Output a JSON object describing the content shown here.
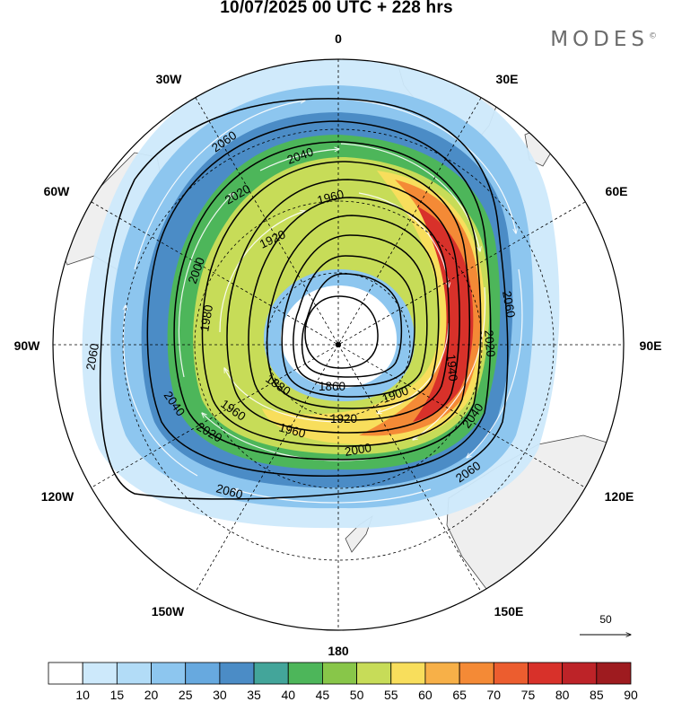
{
  "title": "10/07/2025  00 UTC  + 228 hrs",
  "brand": "MODES",
  "brand_mark": "©",
  "longitude_labels": {
    "n0": "0",
    "n30e": "30E",
    "n60e": "60E",
    "n90e": "90E",
    "n120e": "120E",
    "n150e": "150E",
    "n180": "180",
    "n150w": "150W",
    "n120w": "120W",
    "n90w": "90W",
    "n60w": "60W",
    "n30w": "30W"
  },
  "contours": {
    "c2060a": "2060",
    "c2060b": "2060",
    "c2060c": "2060",
    "c2060d": "2060",
    "c2060e": "2060",
    "c2040a": "2040",
    "c2040b": "2040",
    "c2040c": "2040",
    "c2020a": "2020",
    "c2020b": "2020",
    "c2020c": "2020",
    "c2000a": "2000",
    "c2000b": "2000",
    "c1980a": "1980",
    "c1960a": "1960",
    "c1960b": "1960",
    "c1960c": "1960",
    "c1940a": "1940",
    "c1920a": "1920",
    "c1920b": "1920",
    "c1900a": "1900",
    "c1880a": "1880",
    "c1860a": "1860"
  },
  "vector_reference": "50",
  "colorbar": {
    "ticks": [
      "10",
      "15",
      "20",
      "25",
      "30",
      "35",
      "40",
      "45",
      "50",
      "55",
      "60",
      "65",
      "70",
      "75",
      "80",
      "85",
      "90"
    ],
    "colors": [
      "#ffffff",
      "#cde9fb",
      "#b2dcf7",
      "#8dc6ef",
      "#67a9df",
      "#4b8cc6",
      "#43a59a",
      "#4db65a",
      "#88c649",
      "#c7dc58",
      "#f8de5c",
      "#f7b048",
      "#f48a36",
      "#ec5d2f",
      "#d8312a",
      "#bd2328",
      "#9e1b1f"
    ]
  }
}
